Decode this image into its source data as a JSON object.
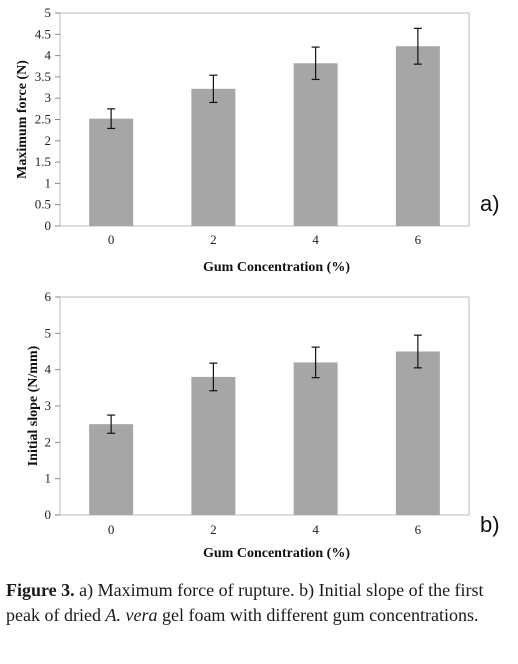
{
  "chart_data": [
    {
      "type": "bar",
      "categories": [
        "0",
        "2",
        "4",
        "6"
      ],
      "values": [
        2.52,
        3.22,
        3.82,
        4.22
      ],
      "errors": [
        0.23,
        0.32,
        0.38,
        0.42
      ],
      "xlabel": "Gum Concentration (%)",
      "ylabel": "Maximum force (N)",
      "ylim": [
        0,
        5
      ],
      "yticks": [
        "0",
        "0.5",
        "1",
        "1.5",
        "2",
        "2.5",
        "3",
        "3.5",
        "4",
        "4.5",
        "5"
      ],
      "panel_label": "a)",
      "bar_color": "#a6a6a6",
      "grid": false
    },
    {
      "type": "bar",
      "categories": [
        "0",
        "2",
        "4",
        "6"
      ],
      "values": [
        2.5,
        3.8,
        4.2,
        4.5
      ],
      "errors": [
        0.25,
        0.38,
        0.42,
        0.45
      ],
      "xlabel": "Gum Concentration (%)",
      "ylabel": "Initial slope (N/mm)",
      "ylim": [
        0,
        6
      ],
      "yticks": [
        "0",
        "1",
        "2",
        "3",
        "4",
        "5",
        "6"
      ],
      "panel_label": "b)",
      "bar_color": "#a6a6a6",
      "grid": false
    }
  ],
  "caption": {
    "label": "Figure 3.",
    "text_1": " a) Maximum force of rupture. b) Initial slope of the first peak of dried ",
    "species": "A. vera",
    "text_2": " gel foam with different gum concentrations."
  }
}
